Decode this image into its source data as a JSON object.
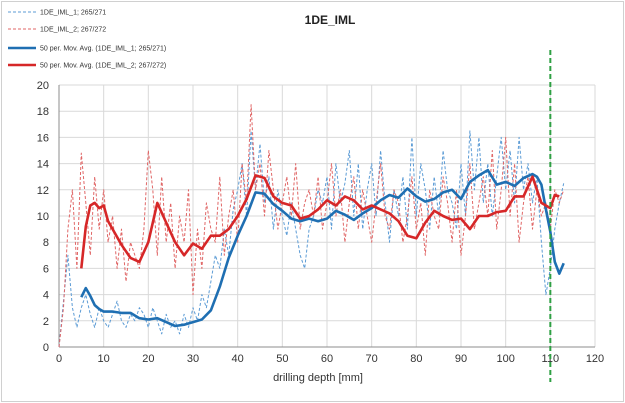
{
  "chart_data": {
    "type": "line",
    "title": "1DE_IML",
    "xlabel": "drilling depth [mm]",
    "ylabel": "",
    "xlim": [
      0,
      120
    ],
    "ylim": [
      0,
      20
    ],
    "xticks": [
      0,
      10,
      20,
      30,
      40,
      50,
      60,
      70,
      80,
      90,
      100,
      110,
      120
    ],
    "yticks": [
      0,
      2,
      4,
      6,
      8,
      10,
      12,
      14,
      16,
      18,
      20
    ],
    "grid": true,
    "legend_position": "top-left",
    "vertical_marker": {
      "x": 110,
      "color": "#2ea043",
      "style": "dashed"
    },
    "series": [
      {
        "name": "1DE_IML_1; 265/271",
        "style": "dashed",
        "color": "#5b9bd5",
        "x": [
          0,
          1,
          2,
          3,
          4,
          5,
          6,
          7,
          8,
          9,
          10,
          11,
          12,
          13,
          14,
          15,
          16,
          17,
          18,
          19,
          20,
          21,
          22,
          23,
          24,
          25,
          26,
          27,
          28,
          29,
          30,
          31,
          32,
          33,
          34,
          35,
          36,
          37,
          38,
          39,
          40,
          41,
          42,
          43,
          44,
          45,
          46,
          47,
          48,
          49,
          50,
          51,
          52,
          53,
          54,
          55,
          56,
          57,
          58,
          59,
          60,
          61,
          62,
          63,
          64,
          65,
          66,
          67,
          68,
          69,
          70,
          71,
          72,
          73,
          74,
          75,
          76,
          77,
          78,
          79,
          80,
          81,
          82,
          83,
          84,
          85,
          86,
          87,
          88,
          89,
          90,
          91,
          92,
          93,
          94,
          95,
          96,
          97,
          98,
          99,
          100,
          101,
          102,
          103,
          104,
          105,
          106,
          107,
          108,
          109,
          110,
          111,
          112,
          113
        ],
        "values": [
          0,
          3.5,
          7,
          3,
          1.5,
          3,
          4,
          2.5,
          1.5,
          3,
          2,
          1.5,
          2.5,
          3.5,
          2,
          1.5,
          2.5,
          2,
          3,
          2.5,
          1.5,
          3,
          2,
          1,
          2.5,
          1.5,
          2,
          1,
          2.5,
          1.5,
          3,
          2,
          4,
          3,
          5,
          7,
          6,
          9,
          7,
          10.5,
          12,
          14,
          10,
          16.5,
          12,
          15.5,
          11,
          13,
          9,
          12,
          10,
          8.5,
          11,
          9,
          7,
          6,
          9,
          10,
          12,
          11,
          13,
          9,
          14,
          11,
          12.5,
          15,
          10,
          14,
          9,
          12,
          14,
          10,
          15,
          11,
          8,
          12,
          10,
          13,
          9,
          16,
          10,
          14,
          12,
          9,
          13,
          10,
          15,
          12,
          11,
          9,
          14,
          10,
          16.5,
          12,
          16,
          11,
          14,
          10,
          13,
          16,
          12,
          15,
          11,
          16,
          12,
          14,
          11,
          13,
          8,
          4,
          6,
          9,
          11,
          12.5
        ]
      },
      {
        "name": "1DE_IML_2; 267/272",
        "style": "dashed",
        "color": "#e06666",
        "x": [
          0,
          1,
          2,
          3,
          4,
          5,
          6,
          7,
          8,
          9,
          10,
          11,
          12,
          13,
          14,
          15,
          16,
          17,
          18,
          19,
          20,
          21,
          22,
          23,
          24,
          25,
          26,
          27,
          28,
          29,
          30,
          31,
          32,
          33,
          34,
          35,
          36,
          37,
          38,
          39,
          40,
          41,
          42,
          43,
          44,
          45,
          46,
          47,
          48,
          49,
          50,
          51,
          52,
          53,
          54,
          55,
          56,
          57,
          58,
          59,
          60,
          61,
          62,
          63,
          64,
          65,
          66,
          67,
          68,
          69,
          70,
          71,
          72,
          73,
          74,
          75,
          76,
          77,
          78,
          79,
          80,
          81,
          82,
          83,
          84,
          85,
          86,
          87,
          88,
          89,
          90,
          91,
          92,
          93,
          94,
          95,
          96,
          97,
          98,
          99,
          100,
          101,
          102,
          103,
          104,
          105,
          106,
          107,
          108,
          109,
          110,
          111,
          112,
          113
        ],
        "values": [
          0,
          3,
          9,
          12,
          6,
          14.8,
          11,
          7,
          13,
          9,
          12,
          8,
          10,
          6,
          9,
          5,
          8,
          7,
          6,
          9,
          15,
          12,
          7,
          13,
          8,
          11,
          6,
          10,
          8,
          12,
          4,
          9,
          6,
          11,
          9,
          8,
          13,
          7,
          10,
          12,
          8,
          14,
          11,
          18.5,
          12,
          14,
          10,
          15,
          12,
          9,
          11,
          13,
          10,
          14,
          9,
          11,
          12,
          10,
          13,
          9,
          11,
          14,
          10,
          12,
          8,
          11,
          13,
          9,
          12,
          10,
          8,
          11,
          14,
          10,
          9,
          12,
          11,
          8,
          10,
          13,
          9,
          11,
          7,
          12,
          10,
          9,
          13,
          11,
          8,
          12,
          7,
          10,
          14,
          9,
          11,
          13,
          10,
          15,
          9,
          12,
          16,
          10,
          14,
          8,
          11,
          13,
          9,
          12,
          10,
          11,
          9,
          12,
          11,
          12
        ]
      },
      {
        "name": "50 per. Mov. Avg. (1DE_IML_1; 265/271)",
        "style": "solid",
        "color": "#1f6fb2",
        "x": [
          5,
          6,
          7,
          8,
          9,
          10,
          12,
          14,
          16,
          18,
          20,
          22,
          24,
          26,
          28,
          30,
          32,
          34,
          36,
          38,
          40,
          42,
          44,
          46,
          48,
          50,
          52,
          54,
          56,
          58,
          60,
          62,
          64,
          66,
          68,
          70,
          72,
          74,
          76,
          78,
          80,
          82,
          84,
          86,
          88,
          90,
          92,
          94,
          96,
          98,
          100,
          102,
          104,
          106,
          107,
          108,
          109,
          110,
          111,
          112,
          113
        ],
        "values": [
          3.8,
          4.5,
          3.9,
          3.2,
          2.9,
          2.7,
          2.7,
          2.6,
          2.6,
          2.2,
          2.1,
          2.2,
          1.9,
          1.6,
          1.7,
          1.9,
          2.1,
          2.8,
          4.6,
          6.8,
          8.5,
          10.0,
          11.8,
          11.7,
          10.9,
          10.4,
          9.8,
          9.6,
          9.8,
          9.6,
          9.8,
          10.4,
          10.1,
          9.7,
          10.2,
          10.6,
          11.2,
          11.6,
          11.4,
          12.1,
          11.5,
          11.1,
          11.3,
          11.8,
          12.0,
          11.3,
          12.6,
          13.1,
          13.5,
          12.4,
          12.6,
          12.3,
          12.9,
          13.2,
          13.0,
          12.4,
          10.5,
          8.8,
          6.5,
          5.6,
          6.4
        ]
      },
      {
        "name": "50 per. Mov. Avg. (1DE_IML_2; 267/272)",
        "style": "solid",
        "color": "#d62728",
        "x": [
          5,
          6,
          7,
          8,
          9,
          10,
          11,
          12,
          14,
          16,
          18,
          20,
          22,
          24,
          26,
          28,
          30,
          32,
          34,
          36,
          38,
          40,
          42,
          44,
          46,
          48,
          50,
          52,
          54,
          56,
          58,
          60,
          62,
          64,
          66,
          68,
          70,
          72,
          74,
          76,
          78,
          80,
          82,
          84,
          86,
          88,
          90,
          92,
          94,
          96,
          98,
          100,
          102,
          104,
          106,
          108,
          110,
          111,
          112
        ],
        "values": [
          6.0,
          9.2,
          10.8,
          11.0,
          10.6,
          10.8,
          9.6,
          9.0,
          7.8,
          6.8,
          6.5,
          8.0,
          11.0,
          9.5,
          8.0,
          7.0,
          7.9,
          7.5,
          8.5,
          8.5,
          9.0,
          10.0,
          11.3,
          13.1,
          12.9,
          11.5,
          11.0,
          10.8,
          9.8,
          10.0,
          10.5,
          11.2,
          10.8,
          11.5,
          11.2,
          10.5,
          10.8,
          10.5,
          10.2,
          9.6,
          8.5,
          8.3,
          9.5,
          10.4,
          10.0,
          9.7,
          9.8,
          9.0,
          10.0,
          10.0,
          10.3,
          10.4,
          11.5,
          11.5,
          13.0,
          11.0,
          10.6,
          11.6,
          11.5
        ]
      }
    ]
  }
}
